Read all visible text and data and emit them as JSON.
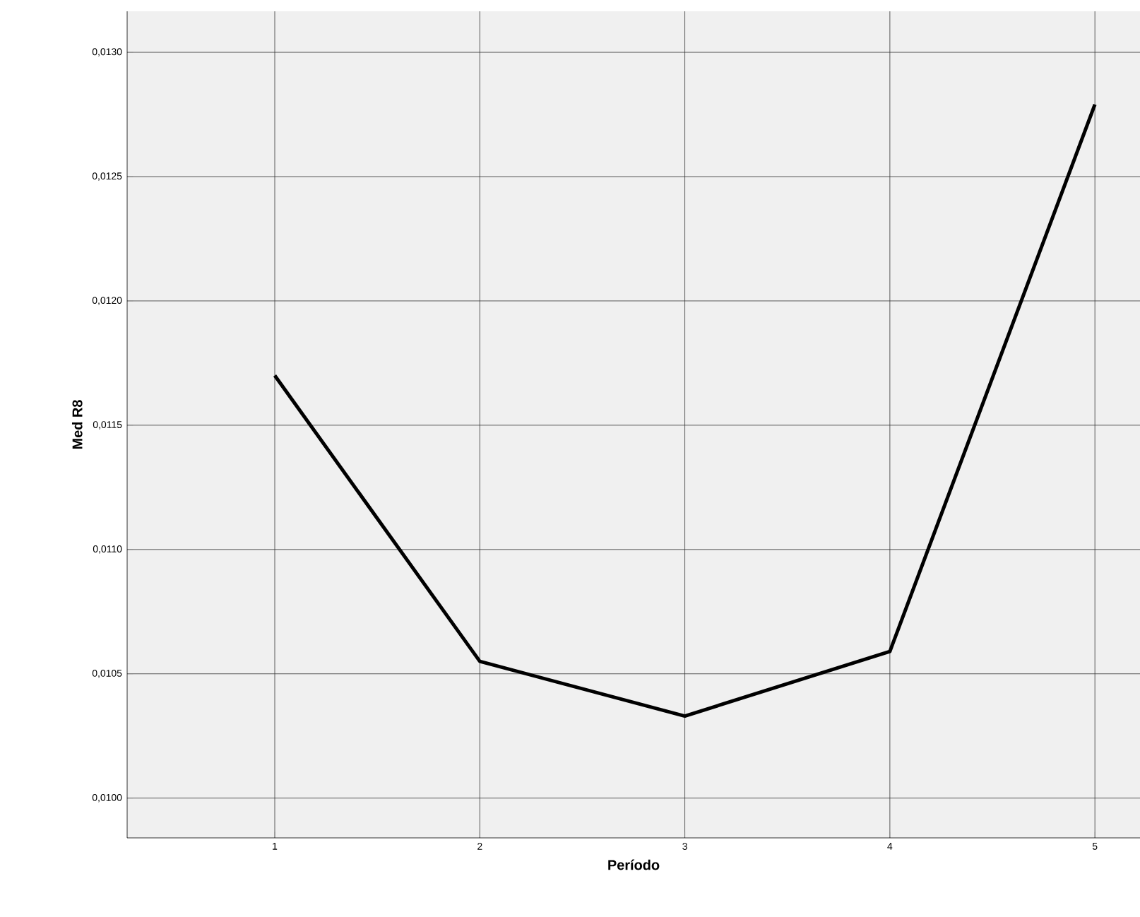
{
  "chart_data": {
    "type": "line",
    "xlabel": "Período",
    "ylabel": "Med R8",
    "x": [
      1,
      2,
      3,
      4,
      5
    ],
    "values": [
      0.0117,
      0.01055,
      0.01033,
      0.01059,
      0.01279
    ],
    "color": "#000000",
    "grid": true,
    "marker": "none",
    "line_style": "solid",
    "xlim": [
      0.28,
      5.22
    ],
    "xticks": [
      1,
      2,
      3,
      4,
      5
    ],
    "ylim": [
      0.00984,
      0.013165
    ],
    "yticks": [
      {
        "value": 0.01,
        "label": "0,0100"
      },
      {
        "value": 0.0105,
        "label": "0,0105"
      },
      {
        "value": 0.011,
        "label": "0,0110"
      },
      {
        "value": 0.0115,
        "label": "0,0115"
      },
      {
        "value": 0.012,
        "label": "0,0120"
      },
      {
        "value": 0.0125,
        "label": "0,0125"
      },
      {
        "value": 0.013,
        "label": "0,0130"
      }
    ]
  }
}
